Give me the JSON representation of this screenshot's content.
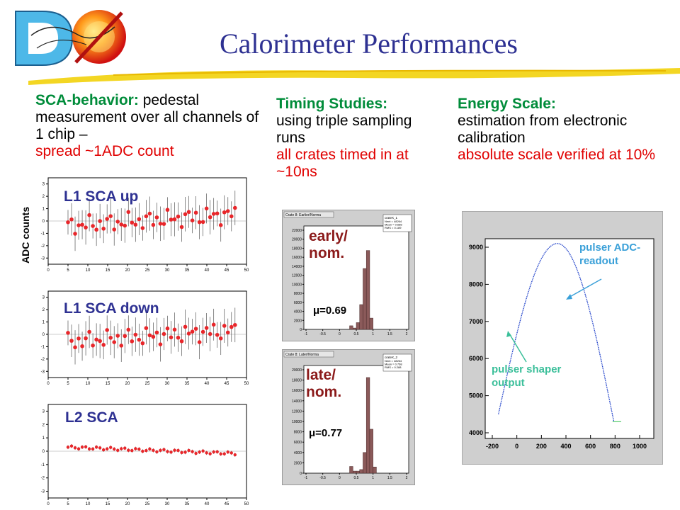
{
  "title": "Calorimeter Performances",
  "logo_text": "DØ",
  "col1": {
    "heading": "SCA-behavior:",
    "text1": "pedestal measurement over all channels of 1 chip –",
    "text2": "spread ~1ADC count",
    "y_axis_label": "ADC counts",
    "plots": [
      {
        "label": "L1 SCA up"
      },
      {
        "label": "L1 SCA down"
      },
      {
        "label": "L2 SCA"
      }
    ]
  },
  "col2": {
    "heading": "Timing Studies:",
    "text1": "using triple sampling runs",
    "text2": "all crates timed in at ~10ns",
    "hists": [
      {
        "frame_title": "Crate 8: Earlier/Norma",
        "stat_name": "crateX_1",
        "stat_lines": [
          "Nent = 48264",
          "Mean = 0.688",
          "RMS = 0.189"
        ],
        "label_line1": "early/",
        "label_line2": "nom.",
        "mu_text": "μ=0.69",
        "y_ticks": [
          "0",
          "2000",
          "4000",
          "6000",
          "8000",
          "10000",
          "12000",
          "14000",
          "16000",
          "18000",
          "20000",
          "22000"
        ],
        "x_ticks": [
          "-1",
          "-0.5",
          "0",
          "0.5",
          "1",
          "1.5",
          "2"
        ]
      },
      {
        "frame_title": "Crate 8: Later/Norma",
        "stat_name": "crateX_2",
        "stat_lines": [
          "Nent = 48264",
          "Mean = 0.768",
          "RMS = 0.288"
        ],
        "label_line1": "late/",
        "label_line2": "nom.",
        "mu_text": "μ=0.77",
        "y_ticks": [
          "0",
          "2000",
          "4000",
          "6000",
          "8000",
          "10000",
          "12000",
          "14000",
          "16000",
          "18000",
          "20000"
        ],
        "x_ticks": [
          "-1",
          "-0.5",
          "0",
          "0.5",
          "1",
          "1.5",
          "2"
        ]
      }
    ]
  },
  "col3": {
    "heading": "Energy Scale:",
    "text1": "estimation from electronic calibration",
    "text2": "absolute scale verified at 10%",
    "y_ticks": [
      "4000",
      "5000",
      "6000",
      "7000",
      "8000",
      "9000"
    ],
    "x_ticks": [
      "-200",
      "0",
      "200",
      "400",
      "600",
      "800",
      "1000"
    ],
    "annotation_adc_line1": "pulser ADC-",
    "annotation_adc_line2": "readout",
    "annotation_shaper_line1": "pulser shaper",
    "annotation_shaper_line2": "output"
  },
  "colors": {
    "title": "#2e3192",
    "heading": "#008c3a",
    "highlight": "#e00000",
    "points": "#e8262a",
    "hist": "#8b5a5a",
    "annotation": "#3aa0d8"
  }
}
